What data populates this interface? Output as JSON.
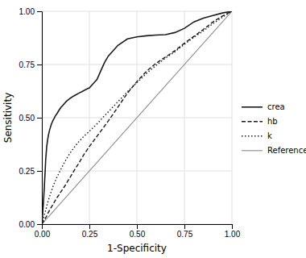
{
  "chart_data": {
    "type": "line",
    "xlabel": "1-Specificity",
    "ylabel": "Sensitivity",
    "xlim": [
      0.0,
      1.0
    ],
    "ylim": [
      0.0,
      1.0
    ],
    "xticks": [
      {
        "value": 0.0,
        "label": "0.00"
      },
      0.25,
      {
        "value": 0.5,
        "label": "0.50"
      },
      0.75,
      {
        "value": 1.0,
        "label": "1.00"
      }
    ],
    "yticks": [
      {
        "value": 0.0,
        "label": "0.00"
      },
      0.25,
      {
        "value": 0.5,
        "label": "0.50"
      },
      0.75,
      {
        "value": 1.0,
        "label": "1.00"
      }
    ],
    "grid": true,
    "legend": "right",
    "series": [
      {
        "name": "crea",
        "color": "#1a1a1a",
        "line_style": "solid",
        "x": [
          0.0,
          0.003,
          0.005,
          0.008,
          0.01,
          0.013,
          0.015,
          0.018,
          0.02,
          0.025,
          0.03,
          0.035,
          0.04,
          0.045,
          0.05,
          0.055,
          0.06,
          0.065,
          0.07,
          0.08,
          0.09,
          0.1,
          0.11,
          0.12,
          0.13,
          0.14,
          0.15,
          0.16,
          0.17,
          0.18,
          0.19,
          0.2,
          0.21,
          0.22,
          0.23,
          0.24,
          0.25,
          0.27,
          0.29,
          0.31,
          0.33,
          0.35,
          0.4,
          0.45,
          0.5,
          0.55,
          0.6,
          0.65,
          0.7,
          0.75,
          0.8,
          0.85,
          0.9,
          0.95,
          1.0
        ],
        "values": [
          0.0,
          0.03,
          0.06,
          0.1,
          0.13,
          0.175,
          0.21,
          0.26,
          0.3,
          0.36,
          0.395,
          0.42,
          0.44,
          0.455,
          0.47,
          0.48,
          0.49,
          0.498,
          0.507,
          0.52,
          0.535,
          0.548,
          0.558,
          0.568,
          0.578,
          0.585,
          0.592,
          0.598,
          0.603,
          0.608,
          0.613,
          0.618,
          0.622,
          0.627,
          0.632,
          0.636,
          0.64,
          0.66,
          0.68,
          0.72,
          0.76,
          0.79,
          0.84,
          0.87,
          0.88,
          0.885,
          0.888,
          0.89,
          0.9,
          0.92,
          0.95,
          0.968,
          0.98,
          0.992,
          1.0
        ]
      },
      {
        "name": "hb",
        "color": "#1a1a1a",
        "line_style": "dashed",
        "x": [
          0.0,
          0.003,
          0.005,
          0.008,
          0.01,
          0.015,
          0.02,
          0.025,
          0.03,
          0.04,
          0.05,
          0.06,
          0.07,
          0.08,
          0.09,
          0.1,
          0.11,
          0.12,
          0.13,
          0.14,
          0.15,
          0.16,
          0.17,
          0.18,
          0.19,
          0.2,
          0.21,
          0.22,
          0.23,
          0.24,
          0.25,
          0.275,
          0.3,
          0.325,
          0.35,
          0.4,
          0.45,
          0.5,
          0.55,
          0.6,
          0.65,
          0.7,
          0.75,
          0.8,
          0.85,
          0.9,
          0.95,
          1.0
        ],
        "values": [
          0.0,
          0.005,
          0.008,
          0.012,
          0.015,
          0.022,
          0.03,
          0.038,
          0.048,
          0.065,
          0.08,
          0.095,
          0.11,
          0.125,
          0.138,
          0.152,
          0.165,
          0.178,
          0.193,
          0.208,
          0.222,
          0.237,
          0.252,
          0.267,
          0.28,
          0.295,
          0.31,
          0.325,
          0.338,
          0.352,
          0.365,
          0.395,
          0.425,
          0.455,
          0.485,
          0.55,
          0.615,
          0.67,
          0.718,
          0.755,
          0.785,
          0.815,
          0.85,
          0.882,
          0.915,
          0.95,
          0.978,
          1.0
        ]
      },
      {
        "name": "k",
        "color": "#1a1a1a",
        "line_style": "dotted",
        "x": [
          0.0,
          0.003,
          0.005,
          0.008,
          0.01,
          0.015,
          0.02,
          0.025,
          0.03,
          0.04,
          0.05,
          0.06,
          0.07,
          0.08,
          0.09,
          0.1,
          0.11,
          0.12,
          0.13,
          0.14,
          0.15,
          0.16,
          0.17,
          0.18,
          0.19,
          0.2,
          0.21,
          0.22,
          0.23,
          0.24,
          0.25,
          0.275,
          0.3,
          0.325,
          0.35,
          0.4,
          0.45,
          0.5,
          0.55,
          0.6,
          0.65,
          0.7,
          0.75,
          0.8,
          0.85,
          0.9,
          0.95,
          1.0
        ],
        "values": [
          0.0,
          0.008,
          0.015,
          0.025,
          0.033,
          0.05,
          0.065,
          0.082,
          0.1,
          0.128,
          0.155,
          0.18,
          0.202,
          0.222,
          0.24,
          0.258,
          0.275,
          0.292,
          0.308,
          0.322,
          0.336,
          0.348,
          0.36,
          0.372,
          0.383,
          0.393,
          0.402,
          0.412,
          0.42,
          0.428,
          0.436,
          0.458,
          0.48,
          0.505,
          0.528,
          0.575,
          0.622,
          0.665,
          0.708,
          0.745,
          0.78,
          0.81,
          0.845,
          0.878,
          0.908,
          0.942,
          0.972,
          1.0
        ]
      },
      {
        "name": "Reference",
        "color": "#888888",
        "line_style": "solid",
        "x": [
          0,
          1
        ],
        "values": [
          0,
          1
        ]
      }
    ]
  }
}
